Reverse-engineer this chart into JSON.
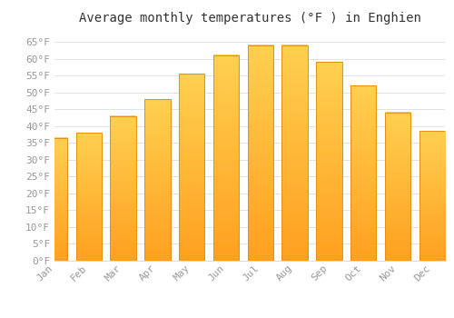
{
  "title": "Average monthly temperatures (°F ) in Enghien",
  "months": [
    "Jan",
    "Feb",
    "Mar",
    "Apr",
    "May",
    "Jun",
    "Jul",
    "Aug",
    "Sep",
    "Oct",
    "Nov",
    "Dec"
  ],
  "values": [
    36.5,
    38.0,
    43.0,
    48.0,
    55.5,
    61.0,
    64.0,
    64.0,
    59.0,
    52.0,
    44.0,
    38.5
  ],
  "bar_color_top": "#FFD050",
  "bar_color_bottom": "#FFA020",
  "bar_edge_color": "#E89010",
  "background_color": "#FFFFFF",
  "grid_color": "#DDDDDD",
  "text_color": "#999999",
  "ylim": [
    0,
    68
  ],
  "yticks": [
    0,
    5,
    10,
    15,
    20,
    25,
    30,
    35,
    40,
    45,
    50,
    55,
    60,
    65
  ],
  "title_fontsize": 10,
  "tick_fontsize": 8
}
